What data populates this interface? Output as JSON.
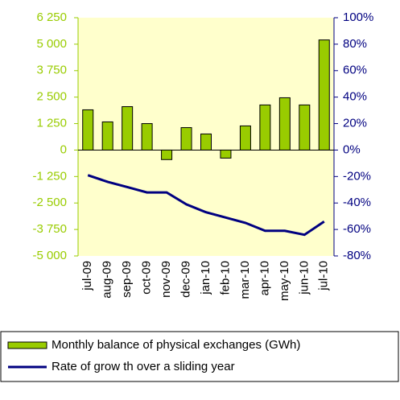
{
  "chart_data": {
    "type": "bar_line",
    "categories": [
      "jul-09",
      "aug-09",
      "sep-09",
      "oct-09",
      "nov-09",
      "dec-09",
      "jan-10",
      "feb-10",
      "mar-10",
      "apr-10",
      "may-10",
      "jun-10",
      "jul-10"
    ],
    "series": [
      {
        "name": "Monthly balance of physical exchanges (GWh)",
        "type": "bar",
        "color": "#99cc00",
        "values": [
          1900,
          1330,
          2050,
          1250,
          -450,
          1060,
          760,
          -380,
          1140,
          2130,
          2470,
          2130,
          5200
        ]
      },
      {
        "name": "Rate of grow th over a sliding year",
        "type": "line",
        "axis": "y2",
        "color": "#000080",
        "values": [
          -19,
          -24,
          -28,
          -32,
          -32,
          -41,
          -47,
          -51,
          -55,
          -61,
          -61,
          -64,
          -54
        ]
      }
    ],
    "ylim": [
      -5000,
      6250
    ],
    "yticks": [
      {
        "value": -5000,
        "label": "-5 000"
      },
      {
        "value": -3750,
        "label": "-3 750"
      },
      {
        "value": -2500,
        "label": "-2 500"
      },
      {
        "value": -1250,
        "label": "-1 250"
      },
      0,
      {
        "value": 1250,
        "label": "1 250"
      },
      {
        "value": 2500,
        "label": "2 500"
      },
      {
        "value": 3750,
        "label": "3 750"
      },
      {
        "value": 5000,
        "label": "5 000"
      },
      {
        "value": 6250,
        "label": "6 250"
      }
    ],
    "y2lim": [
      -80,
      100
    ],
    "y2ticks": [
      {
        "value": -80,
        "label": "-80%"
      },
      {
        "value": -60,
        "label": "-60%"
      },
      {
        "value": -40,
        "label": "-40%"
      },
      {
        "value": -20,
        "label": "-20%"
      },
      {
        "value": 0,
        "label": "0%"
      },
      {
        "value": 20,
        "label": "20%"
      },
      {
        "value": 40,
        "label": "40%"
      },
      {
        "value": 60,
        "label": "60%"
      },
      {
        "value": 80,
        "label": "80%"
      },
      {
        "value": 100,
        "label": "100%"
      }
    ],
    "legend": "bottom"
  }
}
